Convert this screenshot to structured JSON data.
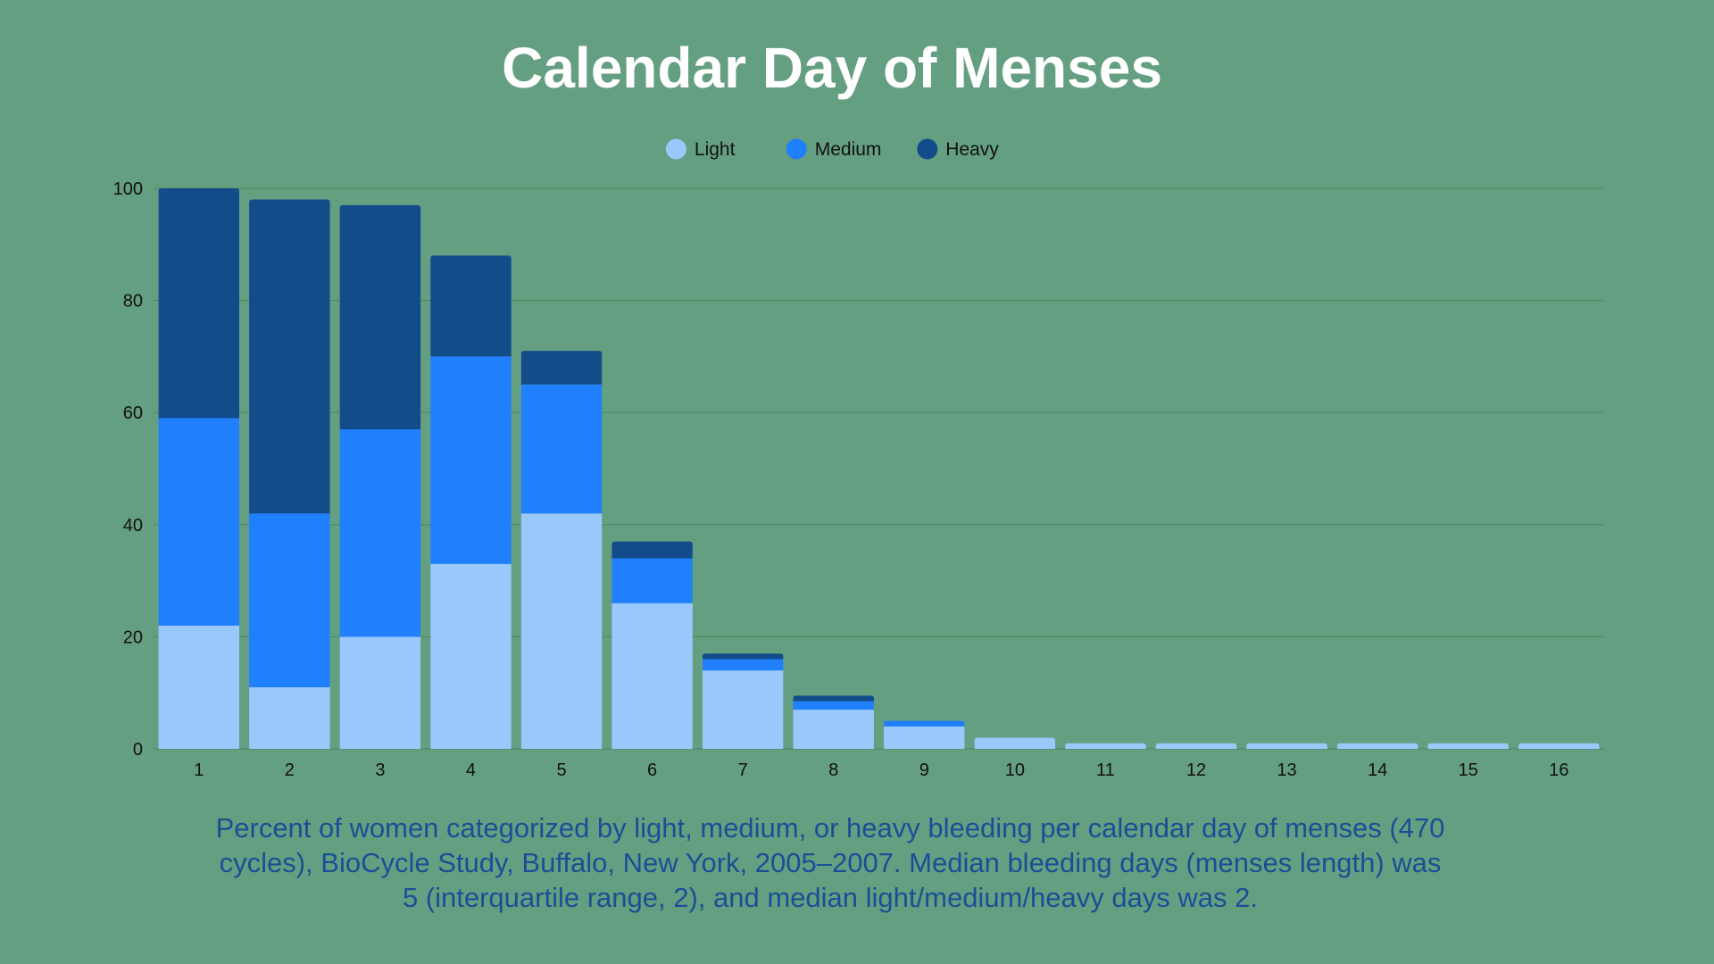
{
  "colors": {
    "background": "#659f81",
    "gridline": "#4f8a65",
    "axis_text": "#111111",
    "title": "#ffffff",
    "caption": "#1a4f96"
  },
  "chart_data": {
    "type": "bar",
    "stacked": true,
    "title": "Calendar Day of Menses",
    "xlabel": "",
    "ylabel": "",
    "ylim": [
      0,
      100
    ],
    "yticks": [
      0,
      20,
      40,
      60,
      80,
      100
    ],
    "grid": true,
    "legend_position": "top-center",
    "categories": [
      "1",
      "2",
      "3",
      "4",
      "5",
      "6",
      "7",
      "8",
      "9",
      "10",
      "11",
      "12",
      "13",
      "14",
      "15",
      "16"
    ],
    "series": [
      {
        "name": "Light",
        "color": "#99c9fb",
        "values": [
          22,
          11,
          20,
          33,
          42,
          26,
          14,
          7,
          4,
          2,
          1,
          1,
          1,
          1,
          1,
          1
        ]
      },
      {
        "name": "Medium",
        "color": "#1f7ffd",
        "values": [
          37,
          31,
          37,
          37,
          23,
          8,
          2,
          1.5,
          1,
          0,
          0,
          0,
          0,
          0,
          0,
          0
        ]
      },
      {
        "name": "Heavy",
        "color": "#134c8b",
        "values": [
          41,
          56,
          40,
          18,
          6,
          3,
          1,
          1,
          0,
          0,
          0,
          0,
          0,
          0,
          0,
          0
        ]
      }
    ]
  },
  "caption": "Percent of women categorized by light, medium, or heavy bleeding per calendar day of menses (470 cycles), BioCycle Study, Buffalo, New York, 2005–2007. Median bleeding days (menses length) was 5 (interquartile range, 2), and median light/medium/heavy days was 2."
}
